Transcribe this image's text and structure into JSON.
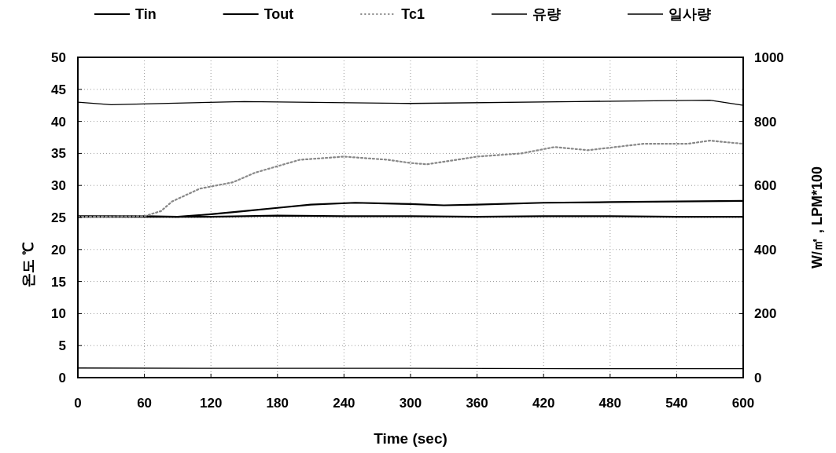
{
  "chart_data": {
    "type": "line",
    "xlabel": "Time (sec)",
    "ylabel": "온도 ℃",
    "y2label": "W/㎡ , LPM*100",
    "xlim": [
      0,
      600
    ],
    "xticks": [
      0,
      60,
      120,
      180,
      240,
      300,
      360,
      420,
      480,
      540,
      600
    ],
    "ylim": [
      0,
      50
    ],
    "yticks": [
      0,
      5,
      10,
      15,
      20,
      25,
      30,
      35,
      40,
      45,
      50
    ],
    "y2lim": [
      0,
      1000
    ],
    "y2ticks": [
      0,
      200,
      400,
      600,
      800,
      1000
    ],
    "grid": true,
    "legend": "top",
    "series": [
      {
        "name": "Tin",
        "color": "#000000",
        "line_style": "solid",
        "x": [
          0,
          60,
          120,
          150,
          180,
          240,
          300,
          360,
          420,
          480,
          540,
          600
        ],
        "values": [
          25.1,
          25.1,
          25.1,
          25.2,
          25.3,
          25.2,
          25.2,
          25.1,
          25.2,
          25.2,
          25.1,
          25.1
        ]
      },
      {
        "name": "Tout",
        "color": "#000000",
        "line_style": "solid",
        "x": [
          0,
          60,
          90,
          120,
          150,
          180,
          210,
          250,
          300,
          330,
          360,
          420,
          480,
          540,
          600
        ],
        "values": [
          25.2,
          25.2,
          25.1,
          25.5,
          26.0,
          26.5,
          27.0,
          27.3,
          27.1,
          26.9,
          27.0,
          27.3,
          27.4,
          27.5,
          27.6
        ]
      },
      {
        "name": "Tc1",
        "color": "#888888",
        "line_style": "dotted",
        "x": [
          0,
          60,
          75,
          85,
          110,
          140,
          160,
          200,
          240,
          280,
          300,
          315,
          360,
          400,
          430,
          460,
          510,
          550,
          570,
          600
        ],
        "values": [
          25.1,
          25.2,
          26.0,
          27.5,
          29.5,
          30.5,
          32.0,
          34.0,
          34.5,
          34.0,
          33.5,
          33.3,
          34.5,
          35.0,
          36.0,
          35.5,
          36.5,
          36.5,
          37.0,
          36.5
        ]
      },
      {
        "name": "유량",
        "color": "#000000",
        "line_style": "solid",
        "axis": "y2",
        "x": [
          0,
          150,
          300,
          450,
          600
        ],
        "values": [
          30,
          29,
          29,
          28,
          28
        ]
      },
      {
        "name": "일사량",
        "color": "#000000",
        "line_style": "solid",
        "axis": "y2",
        "x": [
          0,
          30,
          150,
          300,
          450,
          570,
          600
        ],
        "values": [
          860,
          852,
          862,
          856,
          862,
          866,
          850
        ]
      }
    ]
  }
}
